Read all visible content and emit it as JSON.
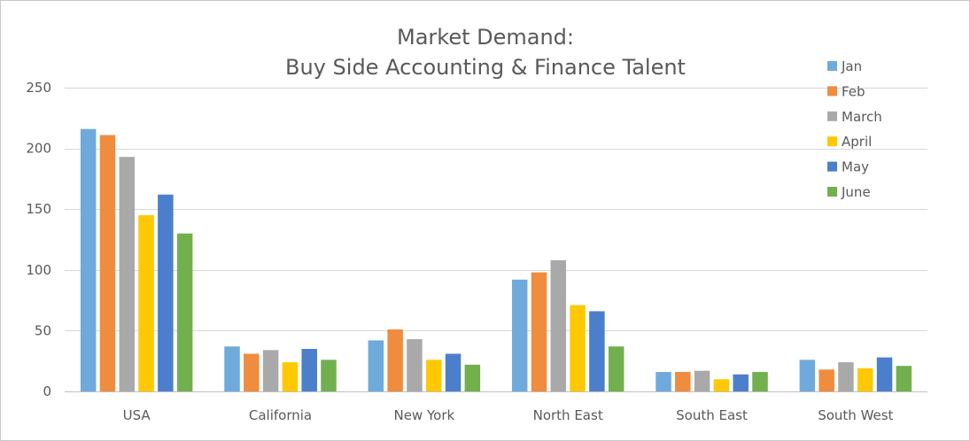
{
  "chart_data": {
    "type": "bar",
    "title_lines": [
      "Market Demand:",
      "Buy Side Accounting & Finance Talent"
    ],
    "xlabel": "",
    "ylabel": "",
    "categories": [
      "USA",
      "California",
      "New York",
      "North East",
      "South East",
      "South West"
    ],
    "ylim": [
      0,
      250
    ],
    "yticks": [
      0,
      50,
      100,
      150,
      200,
      250
    ],
    "grid": true,
    "legend_position": "top-right",
    "series": [
      {
        "name": "Jan",
        "color": "#6FAADC",
        "values": [
          216,
          37,
          42,
          92,
          16,
          26
        ]
      },
      {
        "name": "Feb",
        "color": "#F08C3E",
        "values": [
          211,
          31,
          51,
          98,
          16,
          18
        ]
      },
      {
        "name": "March",
        "color": "#A9A9A9",
        "values": [
          193,
          34,
          43,
          108,
          17,
          24
        ]
      },
      {
        "name": "April",
        "color": "#FFC800",
        "values": [
          145,
          24,
          26,
          71,
          10,
          19
        ]
      },
      {
        "name": "May",
        "color": "#4B7FCC",
        "values": [
          162,
          35,
          31,
          66,
          14,
          28
        ]
      },
      {
        "name": "June",
        "color": "#72B04E",
        "values": [
          130,
          26,
          22,
          37,
          16,
          21
        ]
      }
    ]
  }
}
